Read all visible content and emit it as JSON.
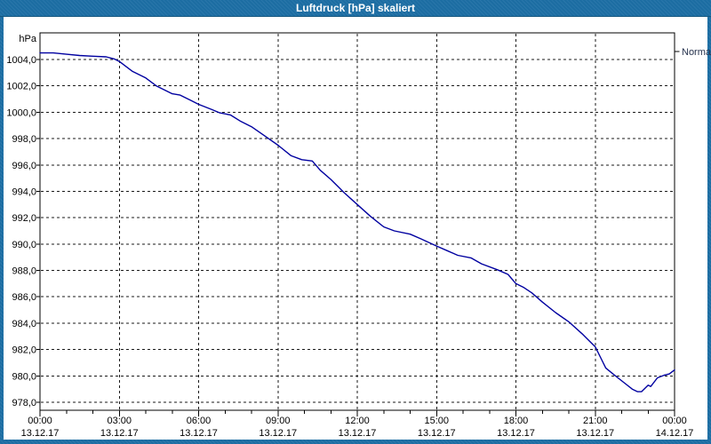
{
  "window": {
    "title": "Luftdruck [hPa] skaliert"
  },
  "legend": {
    "series_label": "Normal"
  },
  "colors": {
    "frame_blue": "#1d6fa5",
    "title_text": "#ffffff",
    "plot_background": "#ffffff",
    "plot_border": "#000000",
    "gridline": "#1a1a1a",
    "series_line": "#0000a0",
    "axis_text": "#000000",
    "legend_text": "#26324d"
  },
  "chart_data": {
    "type": "line",
    "title": "Luftdruck [hPa] skaliert",
    "grid": "dashed",
    "legend_position": "right-outside-top",
    "y_axis": {
      "unit": "hPa",
      "min": 978,
      "max": 1004,
      "tick_step": 2,
      "tick_values": [
        1004,
        1002,
        1000,
        998,
        996,
        994,
        992,
        990,
        988,
        986,
        984,
        982,
        980,
        978
      ],
      "tick_labels": [
        "1004,0",
        "1002,0",
        "1000,0",
        "998,0",
        "996,0",
        "994,0",
        "992,0",
        "990,0",
        "988,0",
        "986,0",
        "984,0",
        "982,0",
        "980,0",
        "978,0"
      ]
    },
    "x_axis": {
      "range_hours": [
        0,
        24
      ],
      "major_tick_step_hours": 3,
      "minor_tick_step_hours": 1,
      "tick_hours": [
        0,
        3,
        6,
        9,
        12,
        15,
        18,
        21,
        24
      ],
      "tick_times": [
        "00:00",
        "03:00",
        "06:00",
        "09:00",
        "12:00",
        "15:00",
        "18:00",
        "21:00",
        "00:00"
      ],
      "tick_dates": [
        "13.12.17",
        "13.12.17",
        "13.12.17",
        "13.12.17",
        "13.12.17",
        "13.12.17",
        "13.12.17",
        "13.12.17",
        "14.12.17"
      ]
    },
    "series": [
      {
        "name": "Normal",
        "color": "#0000a0",
        "points_hours_hpa": [
          [
            0,
            1004.5
          ],
          [
            0.5,
            1004.5
          ],
          [
            1,
            1004.4
          ],
          [
            1.5,
            1004.3
          ],
          [
            2,
            1004.25
          ],
          [
            2.5,
            1004.2
          ],
          [
            2.8,
            1004.05
          ],
          [
            3,
            1003.85
          ],
          [
            3.5,
            1003.1
          ],
          [
            4,
            1002.6
          ],
          [
            4.4,
            1002.0
          ],
          [
            5,
            1001.4
          ],
          [
            5.3,
            1001.3
          ],
          [
            5.7,
            1000.9
          ],
          [
            6,
            1000.6
          ],
          [
            6.5,
            1000.2
          ],
          [
            6.8,
            999.95
          ],
          [
            7.2,
            999.8
          ],
          [
            7.6,
            999.3
          ],
          [
            8,
            998.9
          ],
          [
            8.5,
            998.2
          ],
          [
            9,
            997.5
          ],
          [
            9.5,
            996.7
          ],
          [
            9.9,
            996.4
          ],
          [
            10.3,
            996.3
          ],
          [
            10.6,
            995.6
          ],
          [
            11,
            994.9
          ],
          [
            11.5,
            993.9
          ],
          [
            12,
            993.0
          ],
          [
            12.5,
            992.1
          ],
          [
            13,
            991.3
          ],
          [
            13.4,
            991.0
          ],
          [
            14,
            990.75
          ],
          [
            14.4,
            990.4
          ],
          [
            15,
            989.85
          ],
          [
            15.4,
            989.5
          ],
          [
            15.8,
            989.15
          ],
          [
            16.3,
            988.95
          ],
          [
            16.7,
            988.5
          ],
          [
            17.3,
            988.05
          ],
          [
            17.7,
            987.7
          ],
          [
            18,
            987.0
          ],
          [
            18.3,
            986.7
          ],
          [
            18.6,
            986.3
          ],
          [
            19,
            985.6
          ],
          [
            19.5,
            984.8
          ],
          [
            20,
            984.1
          ],
          [
            20.5,
            983.2
          ],
          [
            21,
            982.2
          ],
          [
            21.2,
            981.4
          ],
          [
            21.4,
            980.6
          ],
          [
            21.7,
            980.1
          ],
          [
            22.05,
            979.55
          ],
          [
            22.4,
            979.0
          ],
          [
            22.6,
            978.8
          ],
          [
            22.75,
            978.8
          ],
          [
            23,
            979.3
          ],
          [
            23.1,
            979.2
          ],
          [
            23.35,
            979.85
          ],
          [
            23.6,
            980.05
          ],
          [
            23.8,
            980.15
          ],
          [
            24,
            980.45
          ]
        ]
      }
    ]
  }
}
